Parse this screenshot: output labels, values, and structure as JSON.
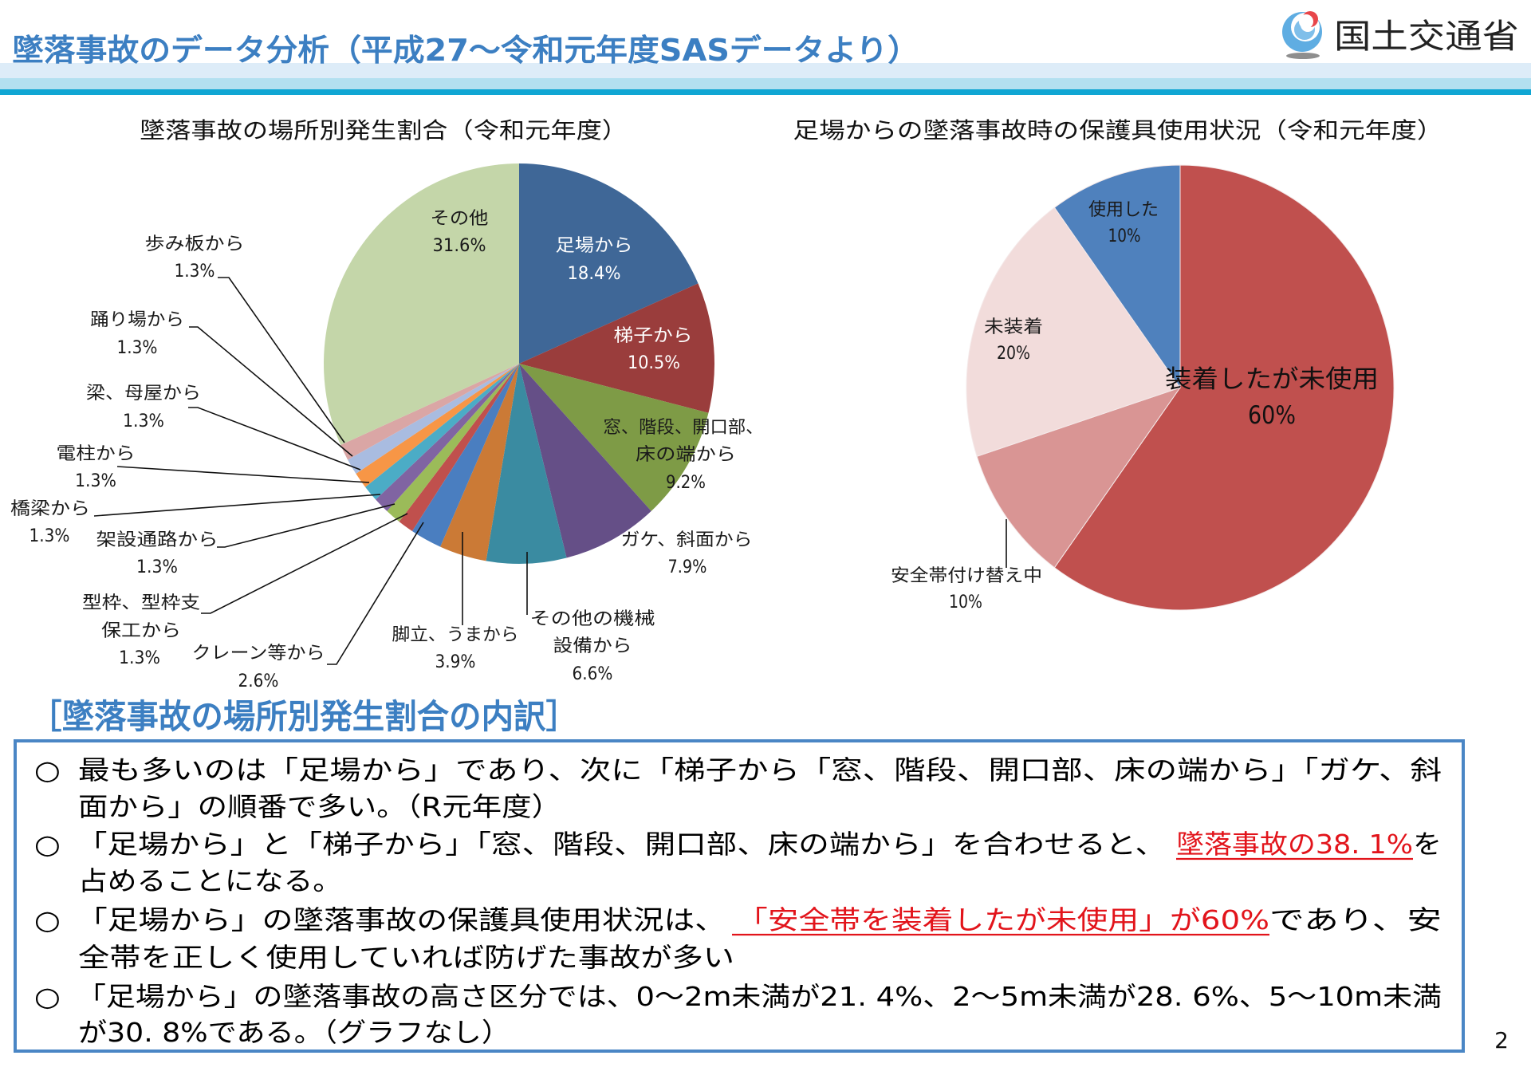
{
  "header": {
    "title": "墜落事故のデータ分析（平成27～令和元年度SASデータより）",
    "logo_text": "国土交通省"
  },
  "chart_data": [
    {
      "type": "pie",
      "title": "墜落事故の場所別発生割合（令和元年度）",
      "unit": "%",
      "start": "top",
      "direction": "clockwise",
      "slices": [
        {
          "label_lines": [
            "足場から"
          ],
          "value": 18.4,
          "value_label": "18.4%",
          "color": "#3F6797"
        },
        {
          "label_lines": [
            "梯子から"
          ],
          "value": 10.5,
          "value_label": "10.5%",
          "color": "#9A3D3C"
        },
        {
          "label_lines": [
            "窓、階段、開口部、",
            "床の端から"
          ],
          "value": 9.2,
          "value_label": "9.2%",
          "color": "#7E9B46"
        },
        {
          "label_lines": [
            "ガケ、斜面から"
          ],
          "value": 7.9,
          "value_label": "7.9%",
          "color": "#654F87"
        },
        {
          "label_lines": [
            "その他の機械",
            "設備から"
          ],
          "value": 6.6,
          "value_label": "6.6%",
          "color": "#3A8BA1"
        },
        {
          "label_lines": [
            "脚立、うまから"
          ],
          "value": 3.9,
          "value_label": "3.9%",
          "color": "#CB7A36"
        },
        {
          "label_lines": [
            "クレーン等から"
          ],
          "value": 2.6,
          "value_label": "2.6%",
          "color": "#4A7EC0"
        },
        {
          "label_lines": [
            "型枠、型枠支",
            "保工から"
          ],
          "value": 1.3,
          "value_label": "1.3%",
          "color": "#C0504D"
        },
        {
          "label_lines": [
            "架設通路から"
          ],
          "value": 1.3,
          "value_label": "1.3%",
          "color": "#9BBB59"
        },
        {
          "label_lines": [
            "橋梁から"
          ],
          "value": 1.3,
          "value_label": "1.3%",
          "color": "#8064A2"
        },
        {
          "label_lines": [
            "電柱から"
          ],
          "value": 1.3,
          "value_label": "1.3%",
          "color": "#4BACC6"
        },
        {
          "label_lines": [
            "梁、母屋から"
          ],
          "value": 1.3,
          "value_label": "1.3%",
          "color": "#F79646"
        },
        {
          "label_lines": [
            "踊り場から"
          ],
          "value": 1.3,
          "value_label": "1.3%",
          "color": "#A9BCE0"
        },
        {
          "label_lines": [
            "歩み板から"
          ],
          "value": 1.3,
          "value_label": "1.3%",
          "color": "#DAA6A5"
        },
        {
          "label_lines": [
            "その他"
          ],
          "value": 31.6,
          "value_label": "31.6%",
          "color": "#C4D6A9"
        }
      ]
    },
    {
      "type": "pie",
      "title": "足場からの墜落事故時の保護具使用状況（令和元年度）",
      "unit": "%",
      "start": "top",
      "direction": "clockwise",
      "slices": [
        {
          "label_lines": [
            "装着したが未使用"
          ],
          "value": 60,
          "value_label": "60%",
          "color": "#C0504E"
        },
        {
          "label_lines": [
            "安全帯付け替え中"
          ],
          "value": 10,
          "value_label": "10%",
          "color": "#D99594"
        },
        {
          "label_lines": [
            "未装着"
          ],
          "value": 20,
          "value_label": "20%",
          "color": "#F2DCDB"
        },
        {
          "label_lines": [
            "使用した"
          ],
          "value": 10,
          "value_label": "10%",
          "color": "#4F81BD"
        }
      ]
    }
  ],
  "section": {
    "heading": "［墜落事故の場所別発生割合の内訳］"
  },
  "highlight_color": "#E2141B",
  "bullets": [
    {
      "marker": "○",
      "lines": [
        [
          {
            "text": "最も多いのは「足場から」であり、次に「梯子から「窓、階段、開口部、床の端から」「ガケ、斜",
            "highlight": false
          }
        ],
        [
          {
            "text": "面から」の順番で多い。（R元年度）",
            "highlight": false
          }
        ]
      ]
    },
    {
      "marker": "○",
      "lines": [
        [
          {
            "text": "「足場から」と「梯子から」「窓、階段、開口部、床の端から」を合わせると、",
            "highlight": false
          },
          {
            "text": "墜落事故の38. 1%",
            "highlight": true
          },
          {
            "text": "を",
            "highlight": false
          }
        ],
        [
          {
            "text": "占めることになる。",
            "highlight": false
          }
        ]
      ]
    },
    {
      "marker": "○",
      "lines": [
        [
          {
            "text": "「足場から」の墜落事故の保護具使用状況は、",
            "highlight": false
          },
          {
            "text": "「安全帯を装着したが未使用」が60%",
            "highlight": true
          },
          {
            "text": "であり、安",
            "highlight": false
          }
        ],
        [
          {
            "text": "全帯を正しく使用していれば防げた事故が多い",
            "highlight": false
          }
        ]
      ]
    },
    {
      "marker": "○",
      "lines": [
        [
          {
            "text": "「足場から」の墜落事故の高さ区分では、0～2m未満が21. 4%、2～5m未満が28. 6%、5～10m未満",
            "highlight": false
          }
        ],
        [
          {
            "text": "が30. 8%である。（グラフなし）",
            "highlight": false
          }
        ]
      ]
    }
  ],
  "page_number": "2"
}
